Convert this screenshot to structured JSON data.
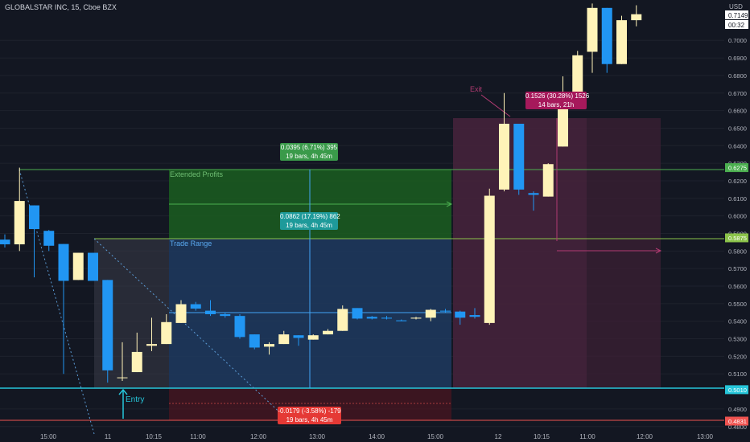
{
  "header": {
    "symbol_line": "GLOBALSTAR INC, 15, Cboe BZX"
  },
  "price_axis": {
    "currency_label": "USD",
    "ticks": [
      "0.7000",
      "0.6900",
      "0.6800",
      "0.6700",
      "0.6600",
      "0.6500",
      "0.6400",
      "0.6300",
      "0.6200",
      "0.6100",
      "0.6000",
      "0.5900",
      "0.5800",
      "0.5700",
      "0.5600",
      "0.5500",
      "0.5400",
      "0.5300",
      "0.5200",
      "0.5100",
      "0.4900",
      "0.4800"
    ],
    "last_price": "0.7149",
    "countdown": "00:32",
    "level_tags": [
      {
        "value": "0.6275",
        "color": "#4caf50"
      },
      {
        "value": "0.5875",
        "color": "#8bc34a"
      },
      {
        "value": "0.5010",
        "color": "#26c6da"
      },
      {
        "value": "0.4831",
        "color": "#ef5350"
      }
    ]
  },
  "time_axis": {
    "ticks": [
      "15:00",
      "11",
      "10:15",
      "11:00",
      "12:00",
      "13:00",
      "14:00",
      "15:00",
      "12",
      "10:15",
      "11:00",
      "12:00",
      "13:00"
    ]
  },
  "annotations": {
    "extended_profits": "Extended Profits",
    "trade_range": "Trade Range",
    "entry": "Entry",
    "exit": "Exit",
    "measure_top": {
      "line1": "0.0395 (6.71%) 395",
      "line2": "19 bars, 4h 45m"
    },
    "measure_mid": {
      "line1": "0.0862 (17.19%) 862",
      "line2": "19 bars, 4h 45m"
    },
    "measure_loss": {
      "line1": "-0.0179 (-3.58%) -179",
      "line2": "19 bars, 4h 45m"
    },
    "measure_exit": {
      "line1": "0.1526 (30.28%) 1526",
      "line2": "14 bars, 21h"
    }
  },
  "colors": {
    "background": "#131722",
    "bull": "#fff3b8",
    "bear": "#2196f3",
    "grid": "#1e222d",
    "text": "#b2b5be"
  },
  "chart_data": {
    "type": "candlestick",
    "title": "GLOBALSTAR INC, 15, Cboe BZX",
    "y_axis": "USD",
    "ylim": [
      0.4776,
      0.723
    ],
    "levels": {
      "extended_profit": 0.6275,
      "trade_high": 0.5875,
      "entry": 0.501,
      "stop": 0.4831,
      "trade_mid": 0.5452
    },
    "candles": [
      {
        "o": 0.5865,
        "h": 0.5895,
        "l": 0.582,
        "c": 0.5838
      },
      {
        "o": 0.5838,
        "h": 0.6275,
        "l": 0.58,
        "c": 0.6085
      },
      {
        "o": 0.606,
        "h": 0.606,
        "l": 0.565,
        "c": 0.5925
      },
      {
        "o": 0.5915,
        "h": 0.592,
        "l": 0.58,
        "c": 0.583
      },
      {
        "o": 0.584,
        "h": 0.584,
        "l": 0.51,
        "c": 0.563
      },
      {
        "o": 0.5635,
        "h": 0.579,
        "l": 0.5635,
        "c": 0.579
      },
      {
        "o": 0.579,
        "h": 0.579,
        "l": 0.564,
        "c": 0.563
      },
      {
        "o": 0.5635,
        "h": 0.5635,
        "l": 0.505,
        "c": 0.512
      },
      {
        "o": 0.508,
        "h": 0.528,
        "l": 0.506,
        "c": 0.508
      },
      {
        "o": 0.511,
        "h": 0.5335,
        "l": 0.511,
        "c": 0.5225
      },
      {
        "o": 0.526,
        "h": 0.542,
        "l": 0.523,
        "c": 0.527
      },
      {
        "o": 0.527,
        "h": 0.544,
        "l": 0.527,
        "c": 0.5395
      },
      {
        "o": 0.539,
        "h": 0.552,
        "l": 0.539,
        "c": 0.5497
      },
      {
        "o": 0.5497,
        "h": 0.551,
        "l": 0.546,
        "c": 0.5472
      },
      {
        "o": 0.546,
        "h": 0.552,
        "l": 0.543,
        "c": 0.544
      },
      {
        "o": 0.544,
        "h": 0.545,
        "l": 0.542,
        "c": 0.543
      },
      {
        "o": 0.543,
        "h": 0.544,
        "l": 0.53,
        "c": 0.531
      },
      {
        "o": 0.5325,
        "h": 0.5325,
        "l": 0.524,
        "c": 0.525
      },
      {
        "o": 0.5255,
        "h": 0.528,
        "l": 0.521,
        "c": 0.527
      },
      {
        "o": 0.527,
        "h": 0.5345,
        "l": 0.527,
        "c": 0.5325
      },
      {
        "o": 0.532,
        "h": 0.532,
        "l": 0.526,
        "c": 0.5305
      },
      {
        "o": 0.5295,
        "h": 0.5325,
        "l": 0.5295,
        "c": 0.532
      },
      {
        "o": 0.5325,
        "h": 0.5355,
        "l": 0.5325,
        "c": 0.5345
      },
      {
        "o": 0.5345,
        "h": 0.549,
        "l": 0.5345,
        "c": 0.547
      },
      {
        "o": 0.5475,
        "h": 0.5475,
        "l": 0.541,
        "c": 0.5415
      },
      {
        "o": 0.5425,
        "h": 0.543,
        "l": 0.541,
        "c": 0.5415
      },
      {
        "o": 0.542,
        "h": 0.543,
        "l": 0.541,
        "c": 0.5415
      },
      {
        "o": 0.5405,
        "h": 0.541,
        "l": 0.54,
        "c": 0.54
      },
      {
        "o": 0.5415,
        "h": 0.5425,
        "l": 0.541,
        "c": 0.542
      },
      {
        "o": 0.542,
        "h": 0.547,
        "l": 0.54,
        "c": 0.5465
      },
      {
        "o": 0.546,
        "h": 0.547,
        "l": 0.545,
        "c": 0.5455
      },
      {
        "o": 0.5455,
        "h": 0.546,
        "l": 0.538,
        "c": 0.542
      },
      {
        "o": 0.5435,
        "h": 0.5475,
        "l": 0.5415,
        "c": 0.5425
      },
      {
        "o": 0.539,
        "h": 0.6155,
        "l": 0.538,
        "c": 0.6115
      },
      {
        "o": 0.615,
        "h": 0.67,
        "l": 0.614,
        "c": 0.6525
      },
      {
        "o": 0.6525,
        "h": 0.6525,
        "l": 0.612,
        "c": 0.615
      },
      {
        "o": 0.613,
        "h": 0.614,
        "l": 0.603,
        "c": 0.612
      },
      {
        "o": 0.611,
        "h": 0.63,
        "l": 0.611,
        "c": 0.6295
      },
      {
        "o": 0.6395,
        "h": 0.6795,
        "l": 0.6395,
        "c": 0.6615
      },
      {
        "o": 0.6615,
        "h": 0.694,
        "l": 0.6615,
        "c": 0.6915
      },
      {
        "o": 0.6935,
        "h": 0.721,
        "l": 0.6815,
        "c": 0.7185
      },
      {
        "o": 0.7185,
        "h": 0.7185,
        "l": 0.6815,
        "c": 0.6865
      },
      {
        "o": 0.6865,
        "h": 0.714,
        "l": 0.6865,
        "c": 0.7115
      },
      {
        "o": 0.7115,
        "h": 0.72,
        "l": 0.708,
        "c": 0.7149
      }
    ]
  }
}
